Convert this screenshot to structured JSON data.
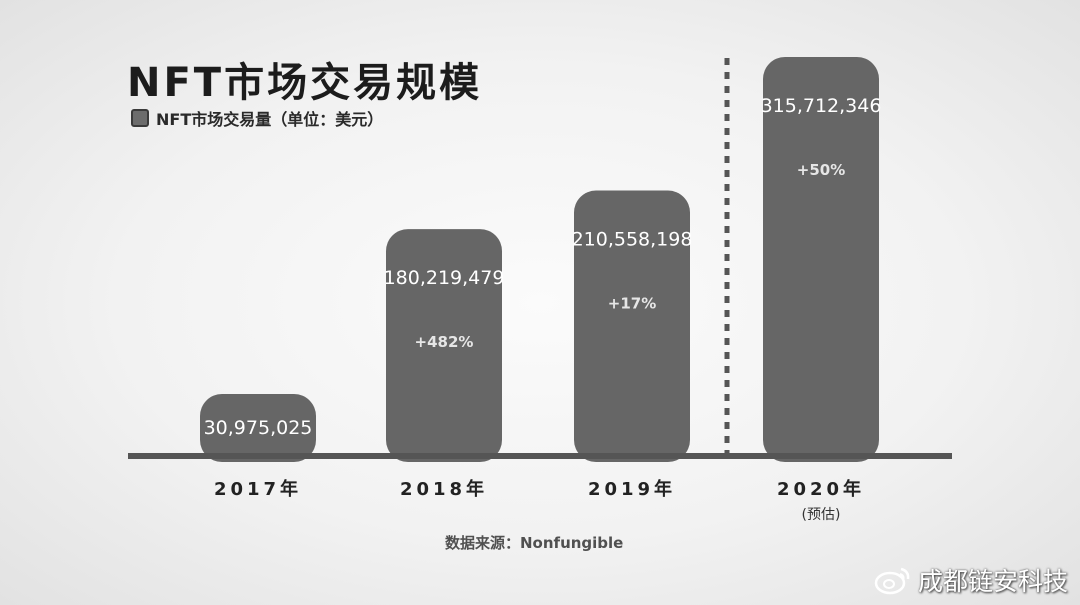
{
  "title": "NFT市场交易规模",
  "legend": {
    "label": "NFT市场交易量（单位：美元）"
  },
  "source": "数据来源：Nonfungible",
  "watermark": "成都链安科技",
  "colors": {
    "bar": "#666666",
    "baseline": "#555555",
    "divider": "#555555"
  },
  "chart_data": {
    "type": "bar",
    "categories": [
      "2017年",
      "2018年",
      "2019年",
      "2020年"
    ],
    "category_notes": [
      "",
      "",
      "",
      "(预估)"
    ],
    "values": [
      30975025,
      180219479,
      210558198,
      315712346
    ],
    "value_labels": [
      "30,975,025",
      "180,219,479",
      "210,558,198",
      "315,712,346"
    ],
    "growth_labels": [
      "",
      "+482%",
      "+17%",
      "+50%"
    ],
    "title": "NFT市场交易规模",
    "legend": [
      "NFT市场交易量（单位：美元）"
    ],
    "legend_position": "top-left",
    "xlabel": "",
    "ylabel": "",
    "ylim": [
      0,
      315712346
    ],
    "grid": false,
    "estimate_divider_before": "2020年"
  }
}
